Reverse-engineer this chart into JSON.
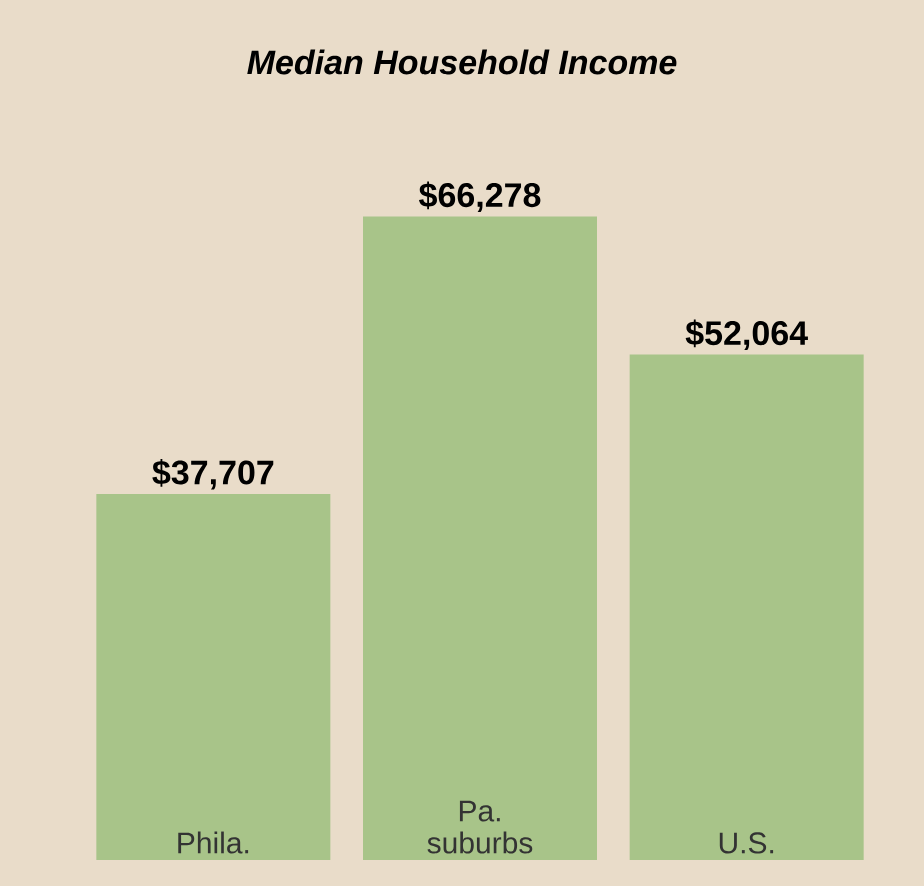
{
  "chart_data": {
    "type": "bar",
    "title": "Median Household Income",
    "categories": [
      "Phila.",
      "Pa. suburbs",
      "U.S."
    ],
    "values": [
      37707,
      66278,
      52064
    ],
    "value_labels": [
      "$37,707",
      "$66,278",
      "$52,064"
    ],
    "color": "#a8c489"
  }
}
